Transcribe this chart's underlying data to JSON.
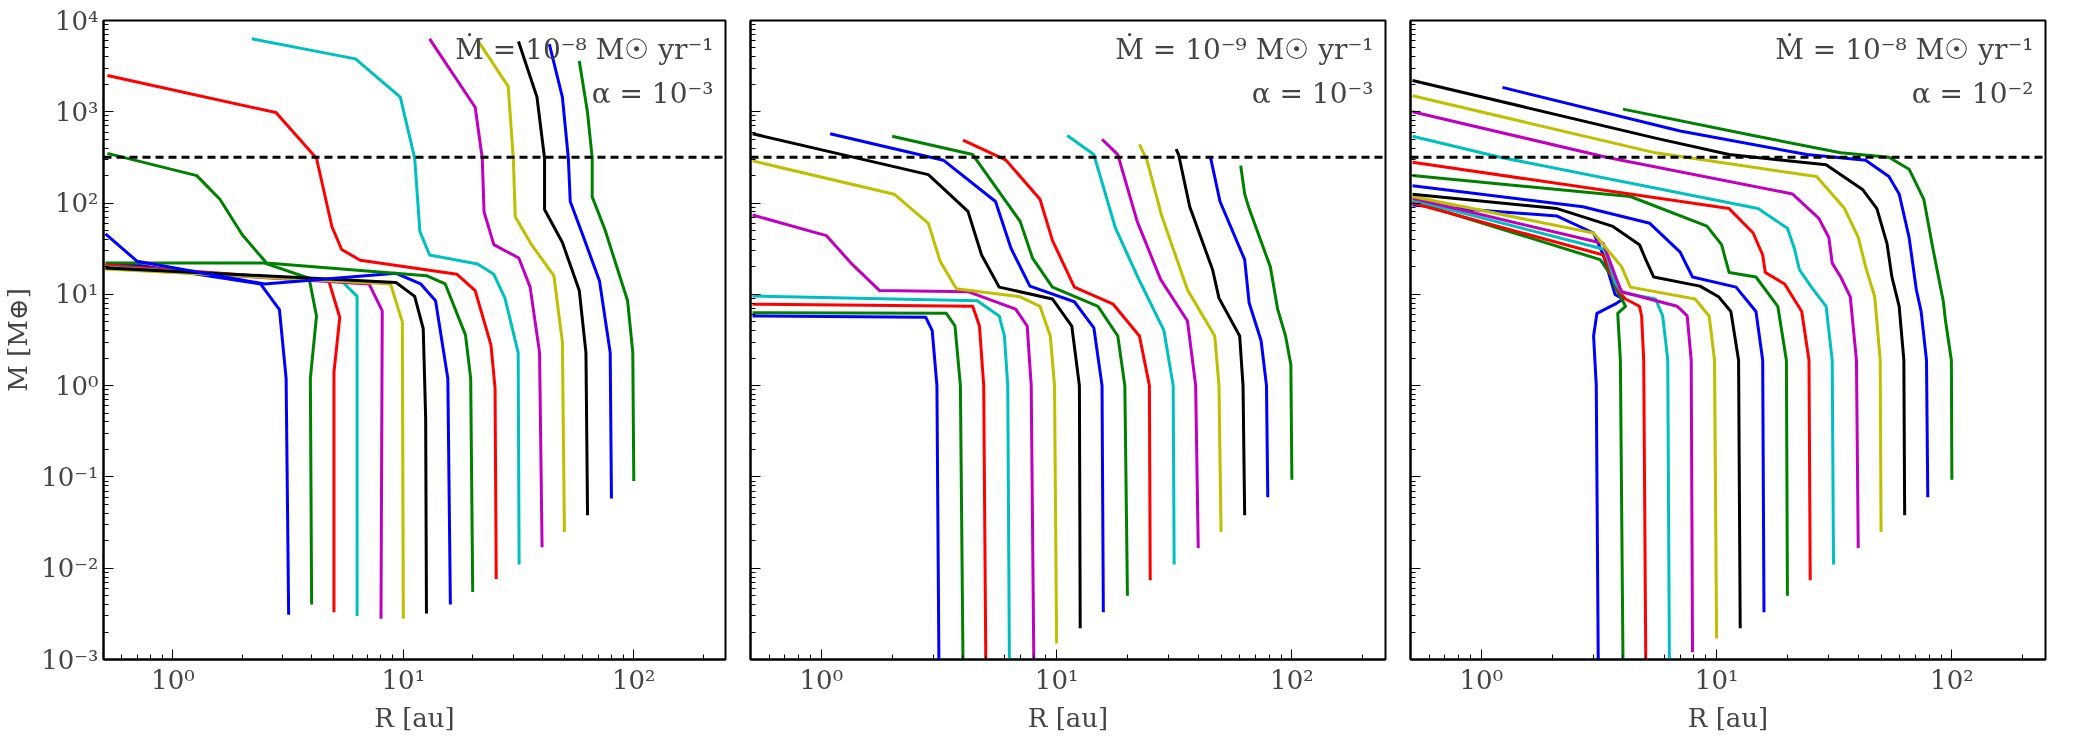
{
  "chart_data": [
    {
      "type": "line",
      "log": "xy",
      "xlabel": "R [au]",
      "ylabel": "M [M⊕]",
      "annotations": [
        "Ṁ = 10⁻⁸ M☉ yr⁻¹",
        "α = 10⁻³"
      ],
      "xlim": [
        0.5,
        250
      ],
      "ylim": [
        0.001,
        10000
      ],
      "xticks": [
        {
          "value": 1,
          "label": "10⁰"
        },
        {
          "value": 10,
          "label": "10¹"
        },
        {
          "value": 100,
          "label": "10²"
        }
      ],
      "yticks": [
        {
          "value": 0.001,
          "label": "10⁻³"
        },
        {
          "value": 0.01,
          "label": "10⁻²"
        },
        {
          "value": 0.1,
          "label": "10⁻¹"
        },
        {
          "value": 1,
          "label": "10⁰"
        },
        {
          "value": 10,
          "label": "10¹"
        },
        {
          "value": 100,
          "label": "10²"
        },
        {
          "value": 1000,
          "label": "10³"
        },
        {
          "value": 10000,
          "label": "10⁴"
        }
      ],
      "ref_lines": [
        {
          "axis": "y",
          "value": 318,
          "color": "#000000",
          "line_style": "dashed"
        }
      ],
      "series": [
        {
          "color": "#0000ff",
          "x": [
            3.18,
            3.1,
            2.9,
            2.4,
            0.7,
            0.51
          ],
          "values": [
            0.0031,
            1.2,
            6.8,
            13,
            21,
            21
          ]
        },
        {
          "color": "#008000",
          "x": [
            4.0,
            3.95,
            4.2,
            3.9,
            2.5,
            0.51
          ],
          "values": [
            0.004,
            1.2,
            5.8,
            15,
            22,
            22
          ]
        },
        {
          "color": "#ff0000",
          "x": [
            5.0,
            5.0,
            5.3,
            4.75,
            0.51
          ],
          "values": [
            0.0033,
            1.4,
            5.6,
            14,
            21
          ]
        },
        {
          "color": "#00bfbf",
          "x": [
            6.3,
            6.3,
            5.4,
            0.51
          ],
          "values": [
            0.003,
            9.5,
            14,
            20
          ]
        },
        {
          "color": "#bf00bf",
          "x": [
            8,
            8.1,
            7.1,
            0.51
          ],
          "values": [
            0.0028,
            6.6,
            13,
            19.5
          ]
        },
        {
          "color": "#bfbf00",
          "x": [
            10,
            9.9,
            8.8,
            0.51
          ],
          "values": [
            0.0028,
            5.0,
            13,
            19
          ]
        },
        {
          "color": "#000000",
          "x": [
            12.6,
            12.5,
            12.2,
            11.2,
            9.3,
            0.51
          ],
          "values": [
            0.0032,
            0.44,
            4.2,
            9.5,
            13.5,
            19.5
          ]
        },
        {
          "color": "#0000ff",
          "x": [
            16,
            15.6,
            13.8,
            11.9,
            9.3,
            2.5,
            0.7,
            0.51
          ],
          "values": [
            0.004,
            1.2,
            8.5,
            13,
            17,
            13,
            23,
            46
          ]
        },
        {
          "color": "#008000",
          "x": [
            20,
            19.6,
            18.6,
            15.2,
            12.6,
            2.55,
            2.0,
            1.6,
            1.27,
            0.52
          ],
          "values": [
            0.0055,
            1.2,
            3.6,
            13,
            16,
            22,
            45,
            110,
            200,
            350
          ]
        },
        {
          "color": "#ff0000",
          "x": [
            25.3,
            25,
            24,
            20.5,
            17.1,
            6.5,
            5.4,
            4.9,
            4.2,
            2.8,
            0.52
          ],
          "values": [
            0.0076,
            0.95,
            2.8,
            11,
            16.6,
            23.6,
            31,
            55,
            310,
            980,
            2500
          ]
        },
        {
          "color": "#00bfbf",
          "x": [
            31.8,
            31.5,
            27.6,
            24.7,
            21,
            13,
            11.8,
            11.2,
            9.7,
            6.2,
            2.2
          ],
          "values": [
            0.011,
            2.3,
            9.1,
            16.6,
            21.5,
            27,
            49,
            310,
            1450,
            3800,
            6300
          ]
        },
        {
          "color": "#bf00bf",
          "x": [
            40,
            39,
            35.5,
            31.7,
            24.7,
            22.4,
            22,
            20.5,
            13
          ],
          "values": [
            0.017,
            2.3,
            12,
            25,
            35,
            80,
            310,
            1120,
            6300
          ]
        },
        {
          "color": "#bfbf00",
          "x": [
            50,
            49,
            45,
            36,
            30.6,
            30,
            28.5,
            21
          ],
          "values": [
            0.025,
            3.0,
            16,
            35,
            71,
            310,
            1900,
            6100
          ]
        },
        {
          "color": "#000000",
          "x": [
            63,
            62,
            58,
            49,
            41,
            41,
            38,
            31.6
          ],
          "values": [
            0.038,
            2.3,
            11,
            37,
            85,
            310,
            1450,
            5900
          ]
        },
        {
          "color": "#0000ff",
          "x": [
            80,
            79,
            71,
            60,
            53,
            52,
            49,
            43
          ],
          "values": [
            0.058,
            2.3,
            14,
            45,
            104,
            310,
            1450,
            5500
          ]
        },
        {
          "color": "#008000",
          "x": [
            100,
            99,
            94,
            75,
            66,
            66,
            63,
            58
          ],
          "values": [
            0.09,
            2.3,
            8.5,
            51,
            117,
            310,
            980,
            3600
          ]
        }
      ]
    },
    {
      "type": "line",
      "log": "xy",
      "xlabel": "R [au]",
      "tick_labels": "x",
      "annotations": [
        "Ṁ = 10⁻⁹ M☉ yr⁻¹",
        "α = 10⁻³"
      ],
      "xlim": [
        0.5,
        250
      ],
      "ylim": [
        0.001,
        10000
      ],
      "xticks": [
        {
          "value": 1,
          "label": "10⁰"
        },
        {
          "value": 10,
          "label": "10¹"
        },
        {
          "value": 100,
          "label": "10²"
        }
      ],
      "yticks": [
        0.001,
        0.01,
        0.1,
        1,
        10,
        100,
        1000,
        10000
      ],
      "ref_lines": [
        {
          "axis": "y",
          "value": 318,
          "color": "#000000",
          "line_style": "dashed"
        }
      ],
      "series": [
        {
          "color": "#0000ff",
          "x": [
            3.16,
            3.1,
            2.96,
            2.78,
            0.51
          ],
          "values": [
            0.001,
            1.0,
            4.0,
            5.6,
            5.8
          ]
        },
        {
          "color": "#008000",
          "x": [
            4,
            3.9,
            3.7,
            3.4,
            0.51
          ],
          "values": [
            0.001,
            1.0,
            4.5,
            6.2,
            6.3
          ]
        },
        {
          "color": "#ff0000",
          "x": [
            5,
            4.9,
            4.7,
            4.4,
            0.51
          ],
          "values": [
            0.001,
            1.0,
            4.5,
            7.4,
            7.8
          ]
        },
        {
          "color": "#00bfbf",
          "x": [
            6.3,
            6.2,
            6.0,
            5.7,
            4.6,
            0.51
          ],
          "values": [
            0.001,
            1.0,
            3.5,
            5.8,
            8.5,
            9.6
          ]
        },
        {
          "color": "#bf00bf",
          "x": [
            8,
            7.8,
            7.5,
            6.7,
            4.2,
            1.77,
            1.36,
            1.05,
            0.51
          ],
          "values": [
            0.001,
            1.0,
            4.5,
            6.9,
            10.7,
            11,
            21,
            44,
            74
          ]
        },
        {
          "color": "#bfbf00",
          "x": [
            10,
            9.8,
            9.4,
            8.5,
            7.0,
            3.75,
            3.2,
            2.85,
            2.04,
            0.51
          ],
          "values": [
            0.0015,
            1.0,
            3.5,
            7.4,
            9.4,
            11.5,
            23,
            60,
            125,
            290
          ]
        },
        {
          "color": "#000000",
          "x": [
            12.6,
            12.5,
            11.6,
            9.6,
            5.7,
            4.8,
            4.2,
            2.85,
            0.51
          ],
          "values": [
            0.0022,
            1.0,
            4.5,
            8.9,
            12,
            27,
            81,
            205,
            575
          ]
        },
        {
          "color": "#0000ff",
          "x": [
            15.8,
            15.6,
            14.4,
            11.9,
            7.7,
            6.4,
            5.5,
            3.3,
            1.09
          ],
          "values": [
            0.0033,
            1.0,
            4.3,
            8.3,
            12.3,
            32,
            104,
            295,
            575
          ]
        },
        {
          "color": "#008000",
          "x": [
            20,
            19.5,
            18.2,
            15,
            9.6,
            7.9,
            7.0,
            4.4,
            2.0
          ],
          "values": [
            0.005,
            1.0,
            3.5,
            7.4,
            12,
            25,
            63,
            340,
            540
          ]
        },
        {
          "color": "#ff0000",
          "x": [
            25,
            24.8,
            22.5,
            17.4,
            11.9,
            9.6,
            8.5,
            6.1,
            4.0
          ],
          "values": [
            0.0074,
            1.0,
            3.5,
            7.8,
            12,
            39,
            110,
            295,
            490
          ]
        },
        {
          "color": "#00bfbf",
          "x": [
            31.6,
            31.3,
            28.6,
            22,
            17.8,
            14.4,
            11.1
          ],
          "values": [
            0.011,
            1.0,
            4.0,
            16,
            53,
            340,
            550
          ]
        },
        {
          "color": "#bf00bf",
          "x": [
            40,
            39,
            36,
            27.7,
            22,
            18.2,
            15.6
          ],
          "values": [
            0.0166,
            1.0,
            5.1,
            14.5,
            63,
            340,
            500
          ]
        },
        {
          "color": "#bfbf00",
          "x": [
            50,
            49,
            47,
            36,
            28,
            24.2,
            22.5
          ],
          "values": [
            0.025,
            1.0,
            3.5,
            11.2,
            72,
            295,
            440
          ]
        },
        {
          "color": "#000000",
          "x": [
            63,
            62,
            60,
            49,
            46,
            36.8,
            33,
            32.2
          ],
          "values": [
            0.038,
            1.0,
            3.5,
            9.1,
            18.7,
            91,
            340,
            390
          ]
        },
        {
          "color": "#0000ff",
          "x": [
            79,
            78,
            74,
            65.8,
            63,
            49.5,
            45
          ],
          "values": [
            0.06,
            1.0,
            3.1,
            8.1,
            24,
            104,
            325
          ]
        },
        {
          "color": "#008000",
          "x": [
            100,
            99,
            94,
            87,
            81,
            65.8,
            63,
            60.6
          ],
          "values": [
            0.093,
            1.7,
            3.5,
            6.9,
            20,
            87,
            126,
            257
          ]
        }
      ]
    },
    {
      "type": "line",
      "log": "xy",
      "xlabel": "R [au]",
      "tick_labels": "x",
      "annotations": [
        "Ṁ = 10⁻⁸ M☉ yr⁻¹",
        "α = 10⁻²"
      ],
      "xlim": [
        0.5,
        250
      ],
      "ylim": [
        0.001,
        10000
      ],
      "xticks": [
        {
          "value": 1,
          "label": "10⁰"
        },
        {
          "value": 10,
          "label": "10¹"
        },
        {
          "value": 100,
          "label": "10²"
        }
      ],
      "yticks": [
        0.001,
        0.01,
        0.1,
        1,
        10,
        100,
        1000,
        10000
      ],
      "ref_lines": [
        {
          "axis": "y",
          "value": 318,
          "color": "#000000",
          "line_style": "dashed"
        }
      ],
      "series": [
        {
          "color": "#0000ff",
          "x": [
            3.14,
            3.08,
            3.0,
            3.1,
            3.7,
            4.0,
            3.7,
            3.3,
            3.0,
            2.1,
            0.51
          ],
          "values": [
            0.001,
            1.0,
            3.5,
            6.2,
            7.8,
            8.9,
            10,
            27,
            47,
            72,
            95
          ]
        },
        {
          "color": "#008000",
          "x": [
            4.0,
            3.9,
            3.8,
            4.1,
            3.95,
            3.7,
            3.6,
            3.2,
            0.51
          ],
          "values": [
            0.001,
            1.9,
            6.2,
            7.4,
            8.9,
            12,
            15.5,
            24,
            104
          ]
        },
        {
          "color": "#ff0000",
          "x": [
            5,
            4.9,
            4.8,
            4.7,
            4.1,
            3.85,
            3.6,
            3.3,
            0.51
          ],
          "values": [
            0.001,
            1.9,
            5.8,
            7.4,
            8.9,
            10.7,
            15.5,
            27,
            100
          ]
        },
        {
          "color": "#00bfbf",
          "x": [
            6.3,
            6.2,
            5.9,
            5.5,
            3.95,
            3.7,
            3.35,
            0.51
          ],
          "values": [
            0.001,
            1.9,
            5.8,
            8.9,
            10.5,
            13.5,
            31,
            108
          ]
        },
        {
          "color": "#bf00bf",
          "x": [
            7.9,
            7.8,
            7.5,
            6.8,
            3.95,
            3.8,
            3.3,
            0.51
          ],
          "values": [
            0.0012,
            1.9,
            5.8,
            7.4,
            10.7,
            13.5,
            36,
            113
          ]
        },
        {
          "color": "#bfbf00",
          "x": [
            10,
            9.8,
            9.3,
            8.1,
            4.3,
            3.95,
            3.0,
            0.51
          ],
          "values": [
            0.0017,
            1.9,
            5.8,
            8.9,
            12,
            20,
            47,
            118
          ]
        },
        {
          "color": "#000000",
          "x": [
            12.6,
            12.4,
            11.5,
            10.2,
            8.5,
            5.4,
            5.0,
            4.7,
            3.6,
            2.1,
            0.51
          ],
          "values": [
            0.0022,
            1.9,
            6.5,
            9.4,
            12.3,
            15.5,
            24,
            35,
            56,
            87,
            125
          ]
        },
        {
          "color": "#0000ff",
          "x": [
            15.9,
            15.7,
            14.7,
            12.1,
            7.9,
            7.0,
            5.2,
            2.7,
            0.51
          ],
          "values": [
            0.0033,
            1.9,
            6.5,
            12,
            15.5,
            29,
            60,
            91,
            155
          ]
        },
        {
          "color": "#008000",
          "x": [
            20,
            19.8,
            18.2,
            14.7,
            11.3,
            10.5,
            9.1,
            4.3,
            0.51
          ],
          "values": [
            0.005,
            1.9,
            7.4,
            15.5,
            17.4,
            35,
            56,
            118,
            200
          ]
        },
        {
          "color": "#ff0000",
          "x": [
            25,
            24.7,
            23,
            19.5,
            16.1,
            15.7,
            14.3,
            11.3,
            0.51
          ],
          "values": [
            0.0074,
            1.9,
            6.5,
            12.9,
            17.4,
            27,
            47,
            87,
            280
          ]
        },
        {
          "color": "#00bfbf",
          "x": [
            31.4,
            31,
            29.2,
            25.3,
            22.5,
            21.4,
            20,
            15,
            1.2,
            0.51
          ],
          "values": [
            0.011,
            1.9,
            7.4,
            12,
            18.6,
            32,
            53,
            87,
            318,
            540
          ]
        },
        {
          "color": "#bf00bf",
          "x": [
            40,
            39.3,
            37,
            33.7,
            31,
            30,
            27.2,
            21,
            3.4,
            0.51
          ],
          "values": [
            0.0166,
            1.9,
            9.4,
            15.5,
            22,
            42,
            68,
            126,
            318,
            1000
          ]
        },
        {
          "color": "#bfbf00",
          "x": [
            50,
            49.6,
            47,
            43,
            40,
            35,
            26.6,
            5.5,
            0.51
          ],
          "values": [
            0.025,
            1.9,
            9.4,
            20,
            42,
            87,
            195,
            355,
            1500
          ]
        },
        {
          "color": "#000000",
          "x": [
            63,
            62.5,
            59.7,
            55.6,
            53,
            48,
            41.7,
            29.2,
            11.3,
            5.5,
            0.51
          ],
          "values": [
            0.038,
            1.9,
            7.4,
            15.5,
            36,
            87,
            141,
            263,
            340,
            515,
            2200
          ]
        },
        {
          "color": "#0000ff",
          "x": [
            79,
            78,
            74,
            70.6,
            65.8,
            59.7,
            54,
            43,
            24.2,
            7.0,
            1.23
          ],
          "values": [
            0.06,
            1.9,
            6.5,
            11.3,
            42,
            126,
            195,
            295,
            340,
            615,
            1850
          ]
        },
        {
          "color": "#008000",
          "x": [
            100,
            99.5,
            94,
            92,
            83,
            76,
            65.8,
            54,
            33.7,
            14.3,
            4.0
          ],
          "values": [
            0.093,
            1.9,
            5.1,
            8.3,
            32,
            110,
            235,
            318,
            355,
            550,
            1070
          ]
        }
      ]
    }
  ]
}
